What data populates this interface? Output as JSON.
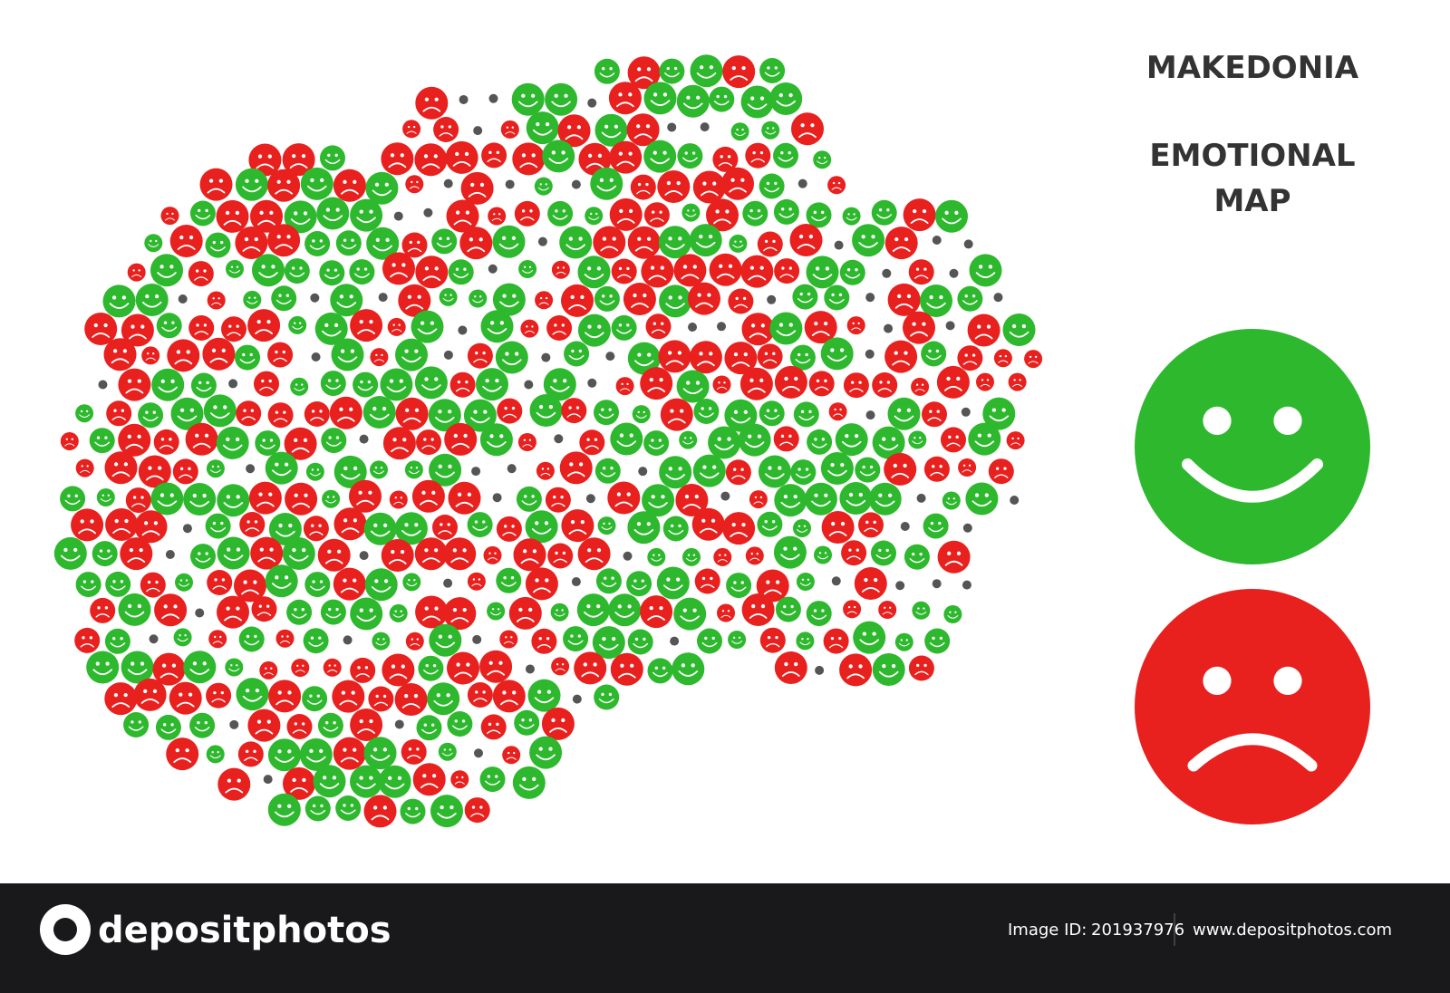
{
  "header": {
    "title": "MAKEDONIA",
    "subtitle_lines": [
      "EMOTIONAL",
      "MAP"
    ]
  },
  "footer": {
    "brand": "depositphotos",
    "id_label": "Image ID:",
    "id_value": "201937976",
    "url": "www.depositphotos.com"
  }
}
